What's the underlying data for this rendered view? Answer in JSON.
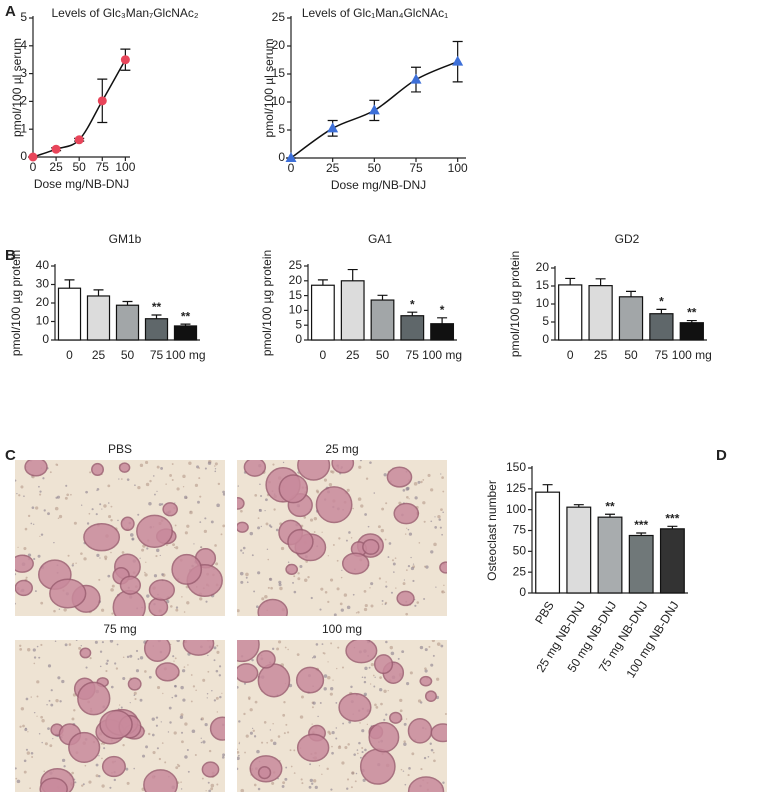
{
  "panel_labels": [
    "A",
    "B",
    "C",
    "D"
  ],
  "micrograph_labels": [
    "PBS",
    "25 mg",
    "75 mg",
    "100 mg"
  ],
  "chart_data": [
    {
      "type": "scatter",
      "title": "Levels of Glc₃Man₇GlcNAc₂",
      "xlabel": "Dose mg/NB-DNJ",
      "ylabel": "pmol/100 µl serum",
      "x": [
        0,
        25,
        50,
        75,
        100
      ],
      "values": [
        0,
        0.28,
        0.62,
        2.02,
        3.5
      ],
      "errors": [
        0,
        0.05,
        0.05,
        0.78,
        0.38
      ],
      "color": "#e8455a",
      "marker": "circle",
      "fit_line": true,
      "xlim": [
        0,
        105
      ],
      "ylim": [
        0,
        5
      ],
      "xticks": [
        0,
        25,
        50,
        75,
        100
      ],
      "yticks": [
        0,
        1,
        2,
        3,
        4,
        5
      ]
    },
    {
      "type": "scatter",
      "title": "Levels of Glc₁Man₄GlcNAc₁",
      "xlabel": "Dose mg/NB-DNJ",
      "ylabel": "pmol/100 µl serum",
      "x": [
        0,
        25,
        50,
        75,
        100
      ],
      "values": [
        0,
        5.3,
        8.5,
        14,
        17.2
      ],
      "errors": [
        0,
        1.4,
        1.8,
        2.2,
        3.6
      ],
      "color": "#3d6fd8",
      "marker": "triangle",
      "fit_line": true,
      "xlim": [
        0,
        105
      ],
      "ylim": [
        0,
        25
      ],
      "xticks": [
        0,
        25,
        50,
        75,
        100
      ],
      "yticks": [
        0,
        5,
        10,
        15,
        20,
        25
      ]
    },
    {
      "type": "bar",
      "title": "GM1b",
      "ylabel": "pmol/100 µg protein",
      "categories": [
        "0",
        "25",
        "50",
        "75",
        "100 mg"
      ],
      "values": [
        28,
        23.8,
        18.8,
        11.5,
        7.6
      ],
      "errors": [
        4.5,
        3.3,
        2,
        2,
        1
      ],
      "colors": [
        "#ffffff",
        "#dcdcdc",
        "#a2a6a8",
        "#5f676a",
        "#111111"
      ],
      "annotations": [
        null,
        null,
        null,
        "**",
        "**"
      ],
      "ylim": [
        0,
        40
      ],
      "yticks": [
        0,
        10,
        20,
        30,
        40
      ]
    },
    {
      "type": "bar",
      "title": "GA1",
      "ylabel": "pmol/100 µg protein",
      "categories": [
        "0",
        "25",
        "50",
        "75",
        "100 mg"
      ],
      "values": [
        18.5,
        20,
        13.5,
        8.2,
        5.5
      ],
      "errors": [
        1.8,
        3.8,
        1.6,
        1.2,
        2
      ],
      "colors": [
        "#ffffff",
        "#dcdcdc",
        "#a2a6a8",
        "#5f676a",
        "#111111"
      ],
      "annotations": [
        null,
        null,
        null,
        "*",
        "*"
      ],
      "ylim": [
        0,
        25
      ],
      "yticks": [
        0,
        5,
        10,
        15,
        20,
        25
      ]
    },
    {
      "type": "bar",
      "title": "GD2",
      "ylabel": "pmol/100 µg protein",
      "categories": [
        "0",
        "25",
        "50",
        "75",
        "100 mg"
      ],
      "values": [
        15.3,
        15.1,
        12,
        7.3,
        4.8
      ],
      "errors": [
        1.8,
        1.9,
        1.5,
        1.2,
        0.6
      ],
      "colors": [
        "#ffffff",
        "#dcdcdc",
        "#a2a6a8",
        "#5f676a",
        "#111111"
      ],
      "annotations": [
        null,
        null,
        null,
        "*",
        "**"
      ],
      "ylim": [
        0,
        20
      ],
      "yticks": [
        0,
        5,
        10,
        15,
        20
      ]
    },
    {
      "type": "bar",
      "ylabel": "Osteoclast number",
      "rotate_labels": true,
      "categories": [
        "PBS",
        "25 mg NB-DNJ",
        "50 mg NB-DNJ",
        "75 mg NB-DNJ",
        "100 mg NB-DNJ"
      ],
      "values": [
        121,
        103,
        91,
        69,
        77
      ],
      "errors": [
        9,
        3,
        3.5,
        3,
        3
      ],
      "colors": [
        "#ffffff",
        "#dcdcdc",
        "#a8acae",
        "#707879",
        "#333333"
      ],
      "annotations": [
        null,
        null,
        "**",
        "***",
        "***"
      ],
      "ylim": [
        0,
        150
      ],
      "yticks": [
        0,
        25,
        50,
        75,
        100,
        125,
        150
      ]
    }
  ]
}
